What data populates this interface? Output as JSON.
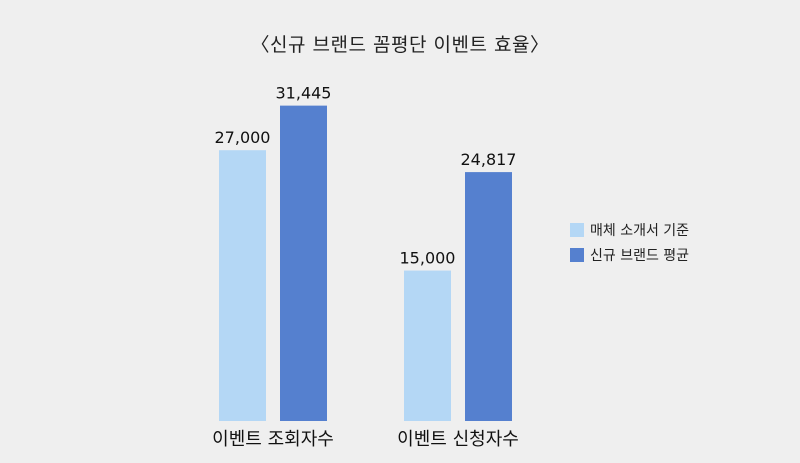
{
  "title": "〈신규 브랜드 꼼평단 이벤트 효율〉",
  "chart_data": {
    "type": "bar",
    "title": "〈신규 브랜드 꼼평단 이벤트 효율〉",
    "categories": [
      "이벤트 조회자수",
      "이벤트 신청자수"
    ],
    "series": [
      {
        "name": "매체 소개서 기준",
        "values": [
          27000,
          15000
        ],
        "labels": [
          "27,000",
          "15,000"
        ],
        "color": "#b4d7f5"
      },
      {
        "name": "신규 브랜드 평균",
        "values": [
          31445,
          24817
        ],
        "labels": [
          "31,445",
          "24,817"
        ],
        "color": "#5580cf"
      }
    ],
    "ylim": [
      0,
      34000
    ],
    "grid": false,
    "legend_position": "right",
    "xlabel": "",
    "ylabel": ""
  }
}
